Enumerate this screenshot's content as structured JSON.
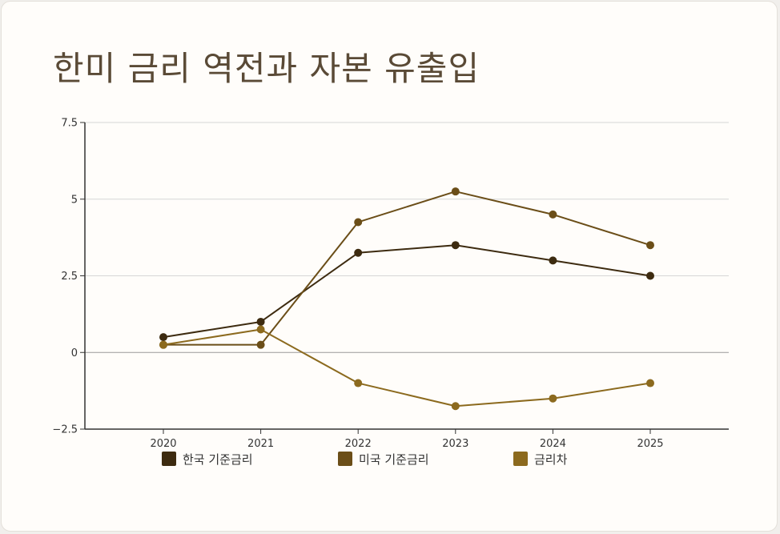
{
  "page": {
    "title": "한미 금리 역전과 자본 유출입"
  },
  "chart_data": {
    "type": "line",
    "title": "한미 금리 역전과 자본 유출입",
    "x": [
      "2020",
      "2021",
      "2022",
      "2023",
      "2024",
      "2025"
    ],
    "ylim": [
      -2.5,
      7.5
    ],
    "yticks": [
      -2.5,
      0,
      2.5,
      5,
      7.5
    ],
    "ytick_labels": [
      "−2.5",
      "0",
      "2.5",
      "5",
      "7.5"
    ],
    "grid": true,
    "legend_position": "bottom",
    "series": [
      {
        "name": "한국 기준금리",
        "values": [
          0.5,
          1.0,
          3.25,
          3.5,
          3.0,
          2.5
        ],
        "color": "#3d2b10"
      },
      {
        "name": "미국 기준금리",
        "values": [
          0.25,
          0.25,
          4.25,
          5.25,
          4.5,
          3.5
        ],
        "color": "#6b4e18"
      },
      {
        "name": "금리차",
        "values": [
          0.25,
          0.75,
          -1.0,
          -1.75,
          -1.5,
          -1.0
        ],
        "color": "#8c6a1e"
      }
    ]
  }
}
